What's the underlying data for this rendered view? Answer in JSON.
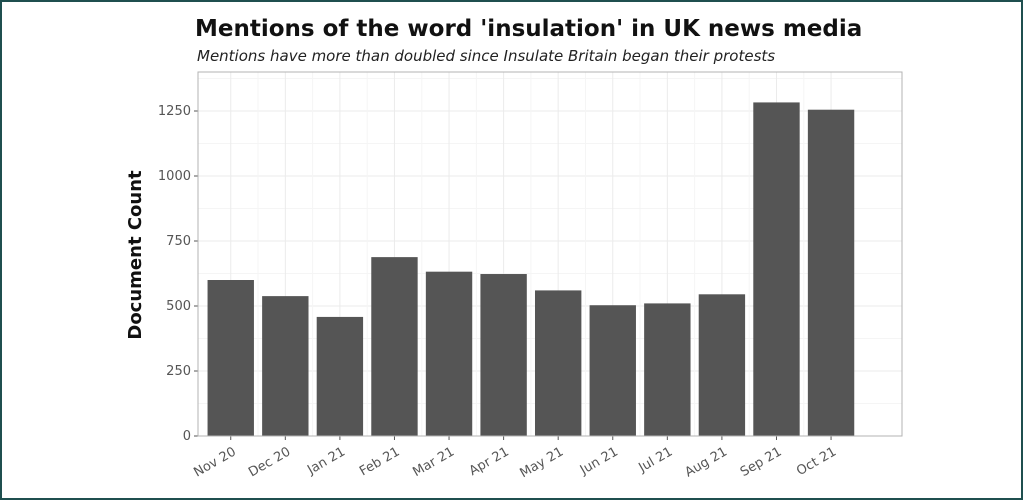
{
  "chart_data": {
    "type": "bar",
    "title": "Mentions of the word 'insulation' in UK news media",
    "subtitle": "Mentions have more than doubled since Insulate Britain began their protests",
    "xlabel": "",
    "ylabel": "Document Count",
    "categories": [
      "Nov 20",
      "Dec 20",
      "Jan 21",
      "Feb 21",
      "Mar 21",
      "Apr 21",
      "May 21",
      "Jun 21",
      "Jul 21",
      "Aug 21",
      "Sep 21",
      "Oct 21"
    ],
    "values": [
      600,
      538,
      458,
      688,
      632,
      623,
      560,
      503,
      510,
      545,
      1283,
      1255
    ],
    "ylim": [
      0,
      1400
    ],
    "yticks": [
      0,
      250,
      500,
      750,
      1000,
      1250
    ],
    "grid": true,
    "colors": {
      "bar": "#555555",
      "grid_major": "#ebebeb",
      "grid_minor": "#f5f5f5",
      "panel_border": "#b3b3b3",
      "frame": "#1f4f4f"
    }
  }
}
